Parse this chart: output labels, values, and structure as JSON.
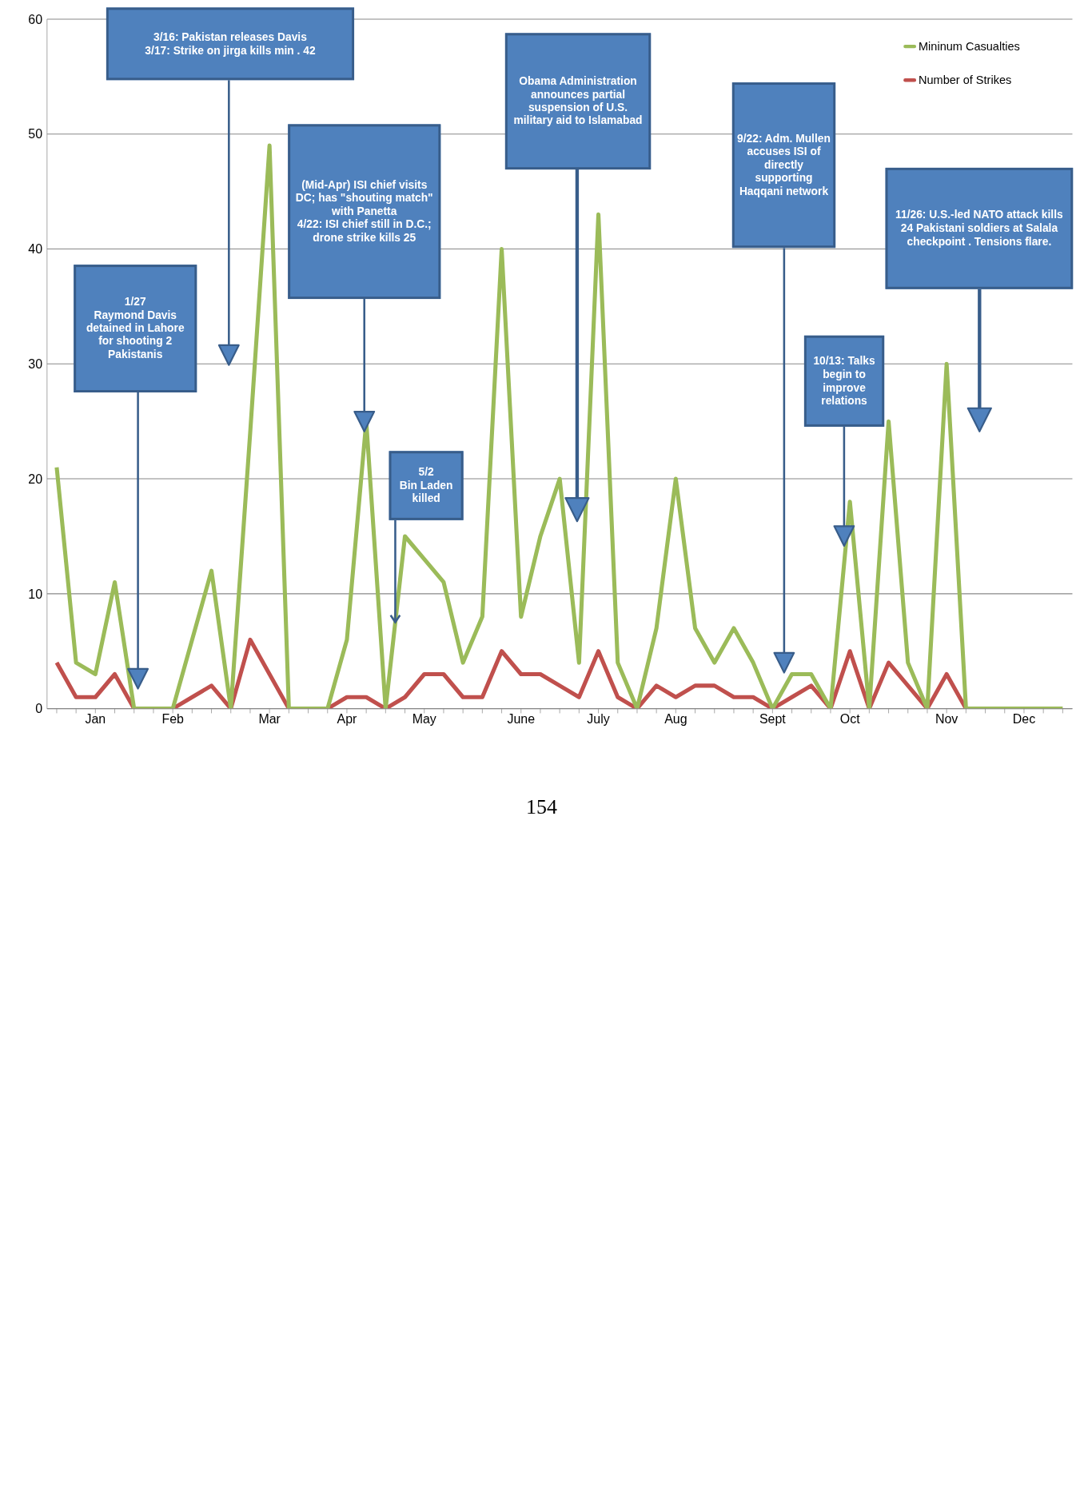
{
  "chart_data": {
    "type": "line",
    "categories": [
      null,
      null,
      "Jan",
      null,
      null,
      null,
      "Feb",
      null,
      null,
      null,
      null,
      "Mar",
      null,
      null,
      null,
      "Apr",
      null,
      null,
      null,
      "May",
      null,
      null,
      null,
      null,
      "June",
      null,
      null,
      null,
      "July",
      null,
      null,
      null,
      "Aug",
      null,
      null,
      null,
      null,
      "Sept",
      null,
      null,
      null,
      "Oct",
      null,
      null,
      null,
      null,
      "Nov",
      null,
      null,
      null,
      "Dec",
      null,
      null
    ],
    "series": [
      {
        "name": "Number of Strikes",
        "color": "#c0504d",
        "values": [
          4,
          1,
          1,
          3,
          0,
          0,
          0,
          1,
          2,
          0,
          6,
          3,
          0,
          0,
          0,
          1,
          1,
          0,
          1,
          3,
          3,
          1,
          1,
          5,
          3,
          3,
          2,
          1,
          5,
          1,
          0,
          2,
          1,
          2,
          2,
          1,
          1,
          0,
          1,
          2,
          0,
          5,
          0,
          4,
          2,
          0,
          3,
          0,
          null,
          null,
          null,
          null,
          null
        ]
      },
      {
        "name": "Mininum Casualties",
        "color": "#9bbb59",
        "values": [
          21,
          4,
          3,
          11,
          0,
          0,
          0,
          6,
          12,
          0,
          24,
          49,
          0,
          0,
          0,
          6,
          25,
          0,
          15,
          13,
          11,
          4,
          8,
          40,
          8,
          15,
          20,
          4,
          43,
          4,
          0,
          7,
          20,
          7,
          4,
          7,
          4,
          0,
          3,
          3,
          0,
          18,
          0,
          25,
          4,
          0,
          30,
          0,
          0,
          0,
          0,
          0,
          0
        ]
      }
    ],
    "ylim": [
      0,
      60
    ],
    "yticks": [
      0,
      10,
      20,
      30,
      40,
      50,
      60
    ],
    "grid": "y",
    "legend": "top right",
    "marker": "none",
    "line_style": "solid",
    "annotations": [
      "1/27\nRaymond Davis detained in Lahore for shooting 2 Pakistanis",
      "3/16: Pakistan releases Davis\n3/17: Strike on jirga kills min . 42",
      "(Mid-Apr) ISI chief visits DC; has \"shouting match\" with Panetta\n4/22: ISI chief still in D.C.; drone strike kills 25",
      "5/2\nBin Laden killed",
      "Obama Administration announces partial suspension of U.S. military aid to Islamabad",
      "9/22: Adm. Mullen accuses ISI of directly supporting Haqqani network",
      "10/13: Talks begin to improve relations",
      "11/26: U.S.-led NATO attack kills 24 Pakistani soldiers at Salala checkpoint . Tensions flare.",
      "154"
    ]
  }
}
